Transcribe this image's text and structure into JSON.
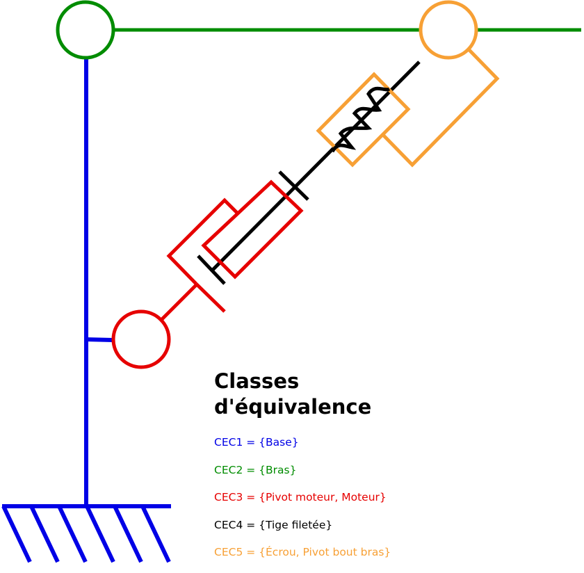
{
  "legend": {
    "title_line1": "Classes",
    "title_line2": "d'équivalence",
    "items": [
      {
        "text": "CEC1 = {Base}",
        "color": "#0000e6"
      },
      {
        "text": "CEC2 = {Bras}",
        "color": "#008c00"
      },
      {
        "text": "CEC3 = {Pivot moteur, Moteur}",
        "color": "#e60000"
      },
      {
        "text": "CEC4 = {Tige filetée}",
        "color": "#000000"
      },
      {
        "text": "CEC5 = {Écrou, Pivot bout bras}",
        "color": "#f7a035"
      }
    ]
  },
  "colors": {
    "base": "#0000e6",
    "arm": "#008c00",
    "motor": "#e60000",
    "rod": "#000000",
    "nut": "#f7a035"
  }
}
